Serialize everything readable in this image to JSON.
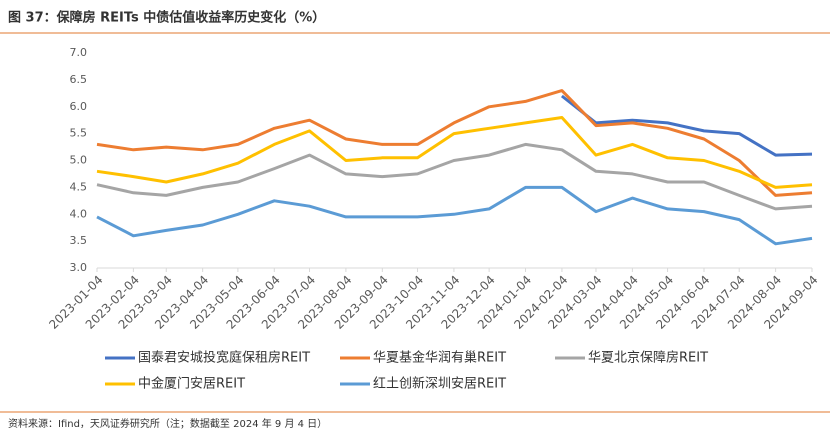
{
  "title": "图 37：保障房 REITs 中债估值收益率历史变化（%）",
  "source": "资料来源：Ifind，天风证券研究所（注；数据截至 2024 年 9 月 4 日）",
  "chart_data": {
    "type": "line",
    "x": [
      "2023-01-04",
      "2023-02-04",
      "2023-03-04",
      "2023-04-04",
      "2023-05-04",
      "2023-06-04",
      "2023-07-04",
      "2023-08-04",
      "2023-09-04",
      "2023-10-04",
      "2023-11-04",
      "2023-12-04",
      "2024-01-04",
      "2024-02-04",
      "2024-03-04",
      "2024-04-04",
      "2024-05-04",
      "2024-06-04",
      "2024-07-04",
      "2024-08-04",
      "2024-09-04"
    ],
    "ylim": [
      3,
      7
    ],
    "yticks": [
      {
        "value": 3,
        "label": "3.0"
      },
      3.5,
      {
        "value": 4,
        "label": "4.0"
      },
      4.5,
      {
        "value": 5,
        "label": "5.0"
      },
      5.5,
      {
        "value": 6,
        "label": "6.0"
      },
      6.5,
      {
        "value": 7,
        "label": "7.0"
      }
    ],
    "grid": false,
    "series": [
      {
        "name": "国泰君安城投宽庭保租房REIT",
        "color": "#4472c4",
        "values": [
          null,
          null,
          null,
          null,
          null,
          null,
          null,
          null,
          null,
          null,
          null,
          null,
          null,
          6.2,
          5.7,
          5.75,
          5.7,
          5.55,
          5.5,
          5.1,
          5.12
        ]
      },
      {
        "name": "华夏基金华润有巢REIT",
        "color": "#ed7d31",
        "values": [
          5.3,
          5.2,
          5.25,
          5.2,
          5.3,
          5.6,
          5.75,
          5.4,
          5.3,
          5.3,
          5.7,
          6.0,
          6.1,
          6.3,
          5.65,
          5.7,
          5.6,
          5.4,
          5.0,
          4.35,
          4.4
        ]
      },
      {
        "name": "华夏北京保障房REIT",
        "color": "#a5a5a5",
        "values": [
          4.55,
          4.4,
          4.35,
          4.5,
          4.6,
          4.85,
          5.1,
          4.75,
          4.7,
          4.75,
          5.0,
          5.1,
          5.3,
          5.2,
          4.8,
          4.75,
          4.6,
          4.6,
          4.35,
          4.1,
          4.15
        ]
      },
      {
        "name": "中金厦门安居REIT",
        "color": "#ffc000",
        "values": [
          4.8,
          4.7,
          4.6,
          4.75,
          4.95,
          5.3,
          5.55,
          5.0,
          5.05,
          5.05,
          5.5,
          5.6,
          5.7,
          5.8,
          5.1,
          5.3,
          5.05,
          5.0,
          4.8,
          4.5,
          4.55
        ]
      },
      {
        "name": "红土创新深圳安居REIT",
        "color": "#5b9bd5",
        "values": [
          3.95,
          3.6,
          3.7,
          3.8,
          4.0,
          4.25,
          4.15,
          3.95,
          3.95,
          3.95,
          4.0,
          4.1,
          4.5,
          4.5,
          4.05,
          4.3,
          4.1,
          4.05,
          3.9,
          3.45,
          3.55
        ]
      }
    ]
  }
}
